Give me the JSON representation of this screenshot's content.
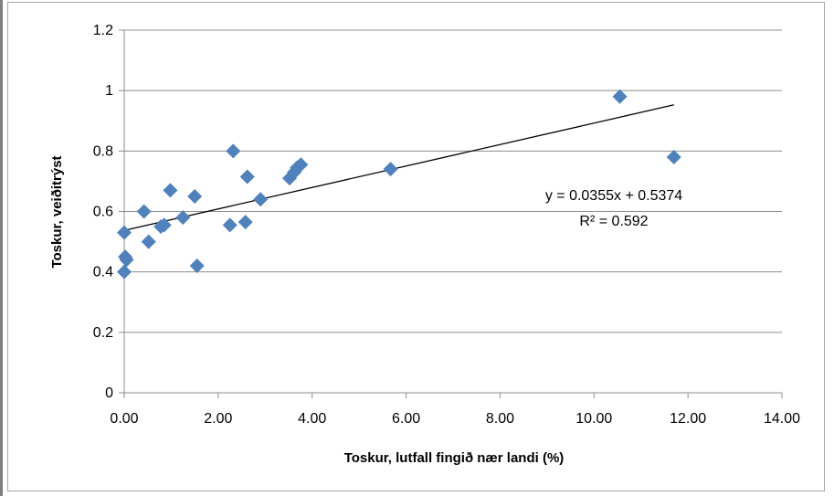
{
  "chart_data": {
    "type": "scatter",
    "xlabel": "Toskur, lutfall fingið nær landi (%)",
    "ylabel": "Toskur, veiðitrýst",
    "xlim": [
      0,
      14
    ],
    "ylim": [
      0,
      1.2
    ],
    "x_ticks": [
      "0.00",
      "2.00",
      "4.00",
      "6.00",
      "8.00",
      "10.00",
      "12.00",
      "14.00"
    ],
    "x_tick_values": [
      0,
      2,
      4,
      6,
      8,
      10,
      12,
      14
    ],
    "y_ticks": [
      "0",
      "0.2",
      "0.4",
      "0.6",
      "0.8",
      "1",
      "1.2"
    ],
    "y_tick_values": [
      0,
      0.2,
      0.4,
      0.6,
      0.8,
      1.0,
      1.2
    ],
    "grid": "horizontal",
    "marker_color": "#4f81bd",
    "points": [
      {
        "x": 0.0,
        "y": 0.53
      },
      {
        "x": 0.02,
        "y": 0.45
      },
      {
        "x": 0.05,
        "y": 0.44
      },
      {
        "x": 0.0,
        "y": 0.4
      },
      {
        "x": 0.42,
        "y": 0.6
      },
      {
        "x": 0.52,
        "y": 0.5
      },
      {
        "x": 0.78,
        "y": 0.55
      },
      {
        "x": 0.85,
        "y": 0.555
      },
      {
        "x": 0.98,
        "y": 0.67
      },
      {
        "x": 1.25,
        "y": 0.58
      },
      {
        "x": 1.5,
        "y": 0.65
      },
      {
        "x": 1.55,
        "y": 0.42
      },
      {
        "x": 2.25,
        "y": 0.555
      },
      {
        "x": 2.32,
        "y": 0.8
      },
      {
        "x": 2.58,
        "y": 0.565
      },
      {
        "x": 2.62,
        "y": 0.715
      },
      {
        "x": 2.9,
        "y": 0.64
      },
      {
        "x": 3.52,
        "y": 0.71
      },
      {
        "x": 3.62,
        "y": 0.73
      },
      {
        "x": 3.68,
        "y": 0.745
      },
      {
        "x": 3.76,
        "y": 0.755
      },
      {
        "x": 5.67,
        "y": 0.74
      },
      {
        "x": 10.55,
        "y": 0.98
      },
      {
        "x": 11.7,
        "y": 0.78
      }
    ],
    "trendline": {
      "slope": 0.0355,
      "intercept": 0.5374,
      "x_range": [
        0,
        11.7
      ],
      "color": "#000000",
      "equation_label": "y = 0.0355x + 0.5374",
      "r2_label": "R² = 0.592"
    }
  }
}
